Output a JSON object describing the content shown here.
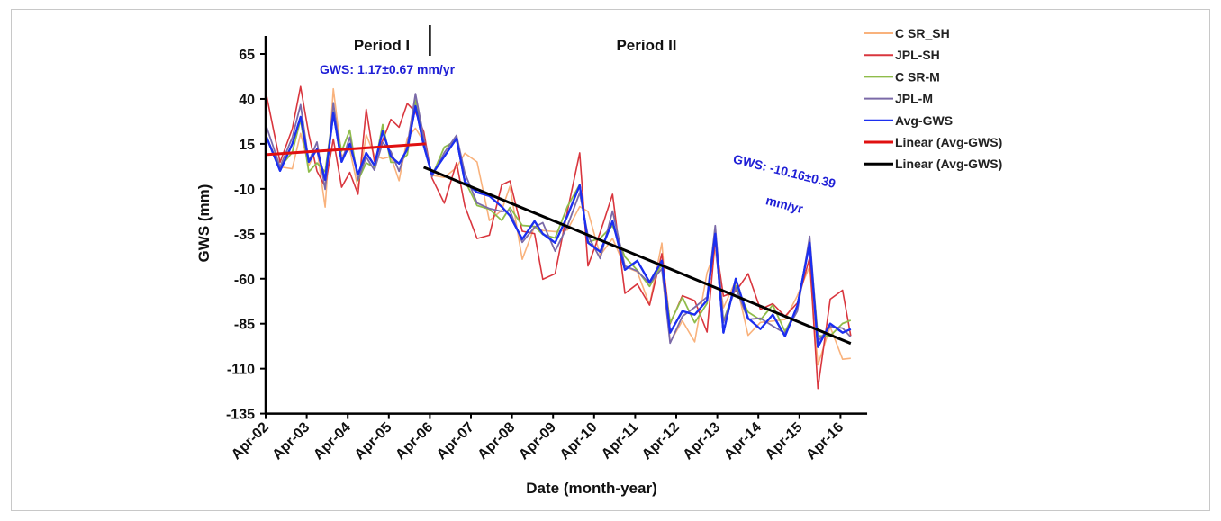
{
  "chart_data": {
    "type": "line",
    "title": "",
    "xlabel": "Date (month-year)",
    "ylabel": "GWS (mm)",
    "ylim": [
      -135,
      75
    ],
    "yticks": [
      65,
      40,
      15,
      -10,
      -35,
      -60,
      -85,
      -110,
      -135
    ],
    "xticks": [
      "Apr-02",
      "Apr-03",
      "Apr-04",
      "Apr-05",
      "Apr-06",
      "Apr-07",
      "Apr-08",
      "Apr-09",
      "Apr-10",
      "Apr-11",
      "Apr-12",
      "Apr-13",
      "Apr-14",
      "Apr-15",
      "Apr-16"
    ],
    "x_start_year": 2002.25,
    "periods": [
      {
        "label": "Period I",
        "start": 2002.25,
        "end": 2006.25
      },
      {
        "label": "Period II",
        "start": 2006.25,
        "end": 2016.5
      }
    ],
    "annotations": [
      {
        "text": "GWS: 1.17±0.67  mm/yr",
        "x": 2004.5,
        "y": 56
      },
      {
        "text": "GWS: -10.16±0.39",
        "x": 2011.5,
        "y": 4
      },
      {
        "text": "mm/yr",
        "x": 2012.3,
        "y": -24
      }
    ],
    "legend_position": "top-right",
    "series": [
      {
        "name": "C SR_SH",
        "color": "#f9b27c",
        "width": 1.6,
        "key": "csrsh"
      },
      {
        "name": "JPL-SH",
        "color": "#d9363e",
        "width": 1.6,
        "key": "jplsh"
      },
      {
        "name": "C SR-M",
        "color": "#8fbc4a",
        "width": 1.8,
        "key": "csrm"
      },
      {
        "name": "JPL-M",
        "color": "#7b6aa8",
        "width": 1.8,
        "key": "jplm"
      },
      {
        "name": "Avg-GWS",
        "color": "#1c2ff0",
        "width": 2.2,
        "key": "avg"
      }
    ],
    "trends": [
      {
        "name": "Linear (Avg-GWS)",
        "color": "#e01010",
        "x": [
          2002.25,
          2006.15
        ],
        "y": [
          9,
          15
        ]
      },
      {
        "name": "Linear (Avg-GWS)",
        "color": "#000000",
        "x": [
          2006.1,
          2016.5
        ],
        "y": [
          2,
          -96
        ]
      }
    ],
    "avg_points": {
      "x": [
        2002.25,
        2002.6,
        2002.9,
        2003.1,
        2003.3,
        2003.5,
        2003.7,
        2003.9,
        2004.1,
        2004.3,
        2004.5,
        2004.7,
        2004.9,
        2005.1,
        2005.3,
        2005.5,
        2005.7,
        2005.9,
        2006.1,
        2006.3,
        2006.6,
        2006.9,
        2007.1,
        2007.4,
        2007.7,
        2008.0,
        2008.2,
        2008.5,
        2008.8,
        2009.0,
        2009.3,
        2009.6,
        2009.9,
        2010.1,
        2010.4,
        2010.7,
        2011.0,
        2011.3,
        2011.6,
        2011.9,
        2012.1,
        2012.4,
        2012.7,
        2013.0,
        2013.2,
        2013.4,
        2013.7,
        2014.0,
        2014.3,
        2014.6,
        2014.9,
        2015.2,
        2015.5,
        2015.7,
        2016.0,
        2016.3,
        2016.5
      ],
      "y": [
        20,
        0,
        15,
        30,
        5,
        12,
        -5,
        32,
        5,
        15,
        -2,
        10,
        3,
        22,
        8,
        4,
        12,
        36,
        14,
        -2,
        8,
        18,
        -6,
        -12,
        -14,
        -20,
        -25,
        -38,
        -28,
        -35,
        -40,
        -25,
        -8,
        -40,
        -45,
        -28,
        -55,
        -50,
        -62,
        -50,
        -90,
        -78,
        -80,
        -72,
        -35,
        -90,
        -60,
        -82,
        -88,
        -80,
        -92,
        -75,
        -40,
        -98,
        -85,
        -90,
        -88
      ]
    }
  }
}
